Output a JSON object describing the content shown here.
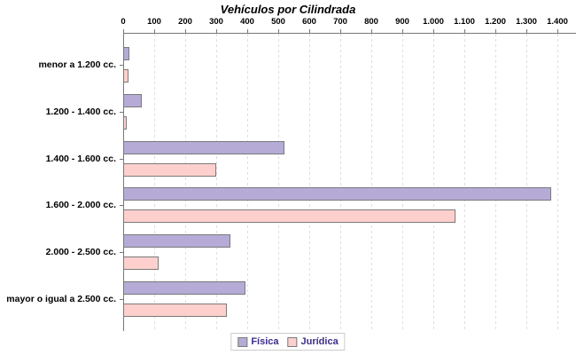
{
  "title": "Vehículos por Cilindrada",
  "chart_data": {
    "type": "bar",
    "orientation": "horizontal",
    "title": "Vehículos por Cilindrada",
    "categories": [
      "menor a 1.200 cc.",
      "1.200 - 1.400 cc.",
      "1.400 - 1.600 cc.",
      "1.600 - 2.000 cc.",
      "2.000 - 2.500 cc.",
      "mayor o igual a 2.500 cc."
    ],
    "series": [
      {
        "name": "Física",
        "values": [
          20,
          60,
          520,
          1380,
          345,
          395
        ],
        "color": "#b5abd6",
        "border_color": "#7a7a7a"
      },
      {
        "name": "Jurídica",
        "values": [
          18,
          10,
          300,
          1070,
          115,
          335
        ],
        "color": "#fdd0cd",
        "border_color": "#7a7a7a"
      }
    ],
    "xlim": [
      0,
      1400
    ],
    "x_tick_interval": 100,
    "x_tick_labels": [
      "0",
      "100",
      "200",
      "300",
      "400",
      "500",
      "600",
      "700",
      "800",
      "900",
      "1.000",
      "1.100",
      "1.200",
      "1.300",
      "1.400"
    ],
    "grid": "vertical-dashed",
    "gridline_color": "#dedede",
    "axis_color": "#777777",
    "legend_position": "bottom-center",
    "legend_text_color": "#3a2d8a",
    "legend_border_color": "#cccccc"
  }
}
